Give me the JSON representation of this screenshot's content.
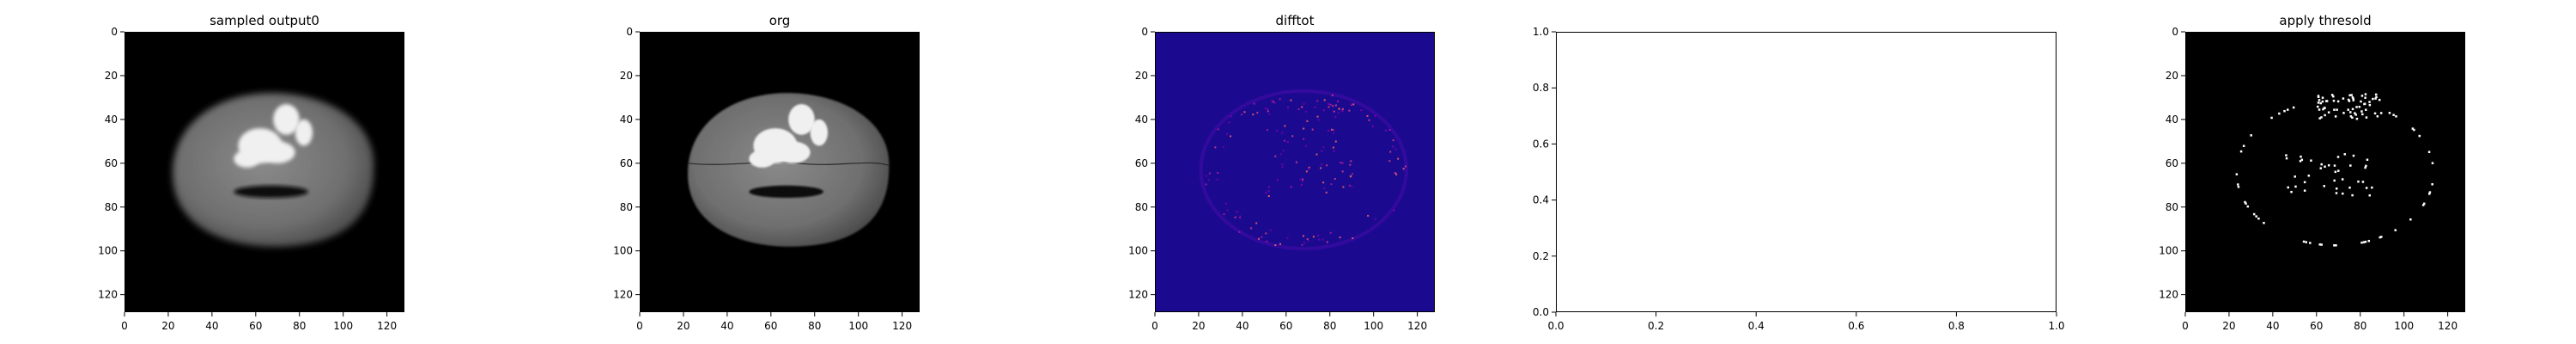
{
  "figure": {
    "background": "#ffffff"
  },
  "chart_data": [
    {
      "type": "heatmap",
      "title": "sampled output0",
      "xlabel": "",
      "ylabel": "",
      "xlim": [
        0,
        128
      ],
      "ylim": [
        128,
        0
      ],
      "xticks": [
        0,
        20,
        40,
        60,
        80,
        100,
        120
      ],
      "yticks": [
        0,
        20,
        40,
        60,
        80,
        100,
        120
      ],
      "colormap": "gray",
      "image_content": "blurred axial brain MRI slice",
      "grid": false
    },
    {
      "type": "heatmap",
      "title": "org",
      "xlabel": "",
      "ylabel": "",
      "xlim": [
        0,
        128
      ],
      "ylim": [
        128,
        0
      ],
      "xticks": [
        0,
        20,
        40,
        60,
        80,
        100,
        120
      ],
      "yticks": [
        0,
        20,
        40,
        60,
        80,
        100,
        120
      ],
      "colormap": "gray",
      "image_content": "original axial brain MRI slice",
      "grid": false
    },
    {
      "type": "heatmap",
      "title": "difftot",
      "xlabel": "",
      "ylabel": "",
      "xlim": [
        0,
        128
      ],
      "ylim": [
        128,
        0
      ],
      "xticks": [
        0,
        20,
        40,
        60,
        80,
        100,
        120
      ],
      "yticks": [
        0,
        20,
        40,
        60,
        80,
        100,
        120
      ],
      "colormap": "plasma",
      "image_content": "absolute difference map",
      "grid": false
    },
    {
      "type": "scatter",
      "title": "",
      "xlabel": "",
      "ylabel": "",
      "xlim": [
        0.0,
        1.0
      ],
      "ylim": [
        0.0,
        1.0
      ],
      "xticks": [
        "0.0",
        "0.2",
        "0.4",
        "0.6",
        "0.8",
        "1.0"
      ],
      "yticks": [
        "0.0",
        "0.2",
        "0.4",
        "0.6",
        "0.8",
        "1.0"
      ],
      "series": [],
      "grid": false
    },
    {
      "type": "heatmap",
      "title": "apply thresold",
      "xlabel": "",
      "ylabel": "",
      "xlim": [
        0,
        128
      ],
      "ylim": [
        128,
        0
      ],
      "xticks": [
        0,
        20,
        40,
        60,
        80,
        100,
        120
      ],
      "yticks": [
        0,
        20,
        40,
        60,
        80,
        100,
        120
      ],
      "colormap": "gray",
      "image_content": "binary thresholded anomaly mask",
      "grid": false
    }
  ]
}
